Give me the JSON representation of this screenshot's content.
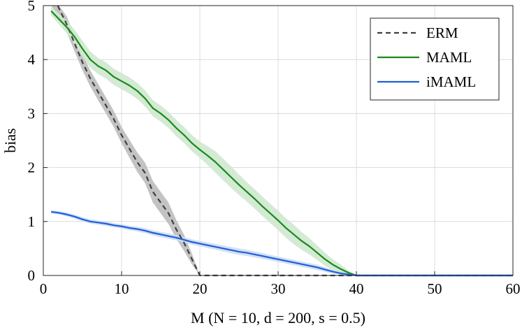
{
  "chart_data": {
    "type": "line",
    "xlabel": "M (N = 10, d = 200, s = 0.5)",
    "ylabel": "bias",
    "xlim": [
      0,
      60
    ],
    "ylim": [
      0,
      5
    ],
    "xticks": [
      "0",
      "10",
      "20",
      "30",
      "40",
      "50",
      "60"
    ],
    "yticks": [
      "0",
      "1",
      "2",
      "3",
      "4",
      "5"
    ],
    "grid": true,
    "legend_position": "top-right",
    "series": [
      {
        "name": "ERM",
        "color": "#404040",
        "band_color": "#bdbdbd",
        "dash": "dashed",
        "points": [
          [
            1,
            5.3
          ],
          [
            2,
            4.95
          ],
          [
            3,
            4.65
          ],
          [
            4,
            4.3
          ],
          [
            5,
            3.95
          ],
          [
            6,
            3.65
          ],
          [
            7,
            3.4
          ],
          [
            8,
            3.15
          ],
          [
            9,
            2.9
          ],
          [
            10,
            2.6
          ],
          [
            11,
            2.35
          ],
          [
            12,
            2.1
          ],
          [
            13,
            1.9
          ],
          [
            14,
            1.55
          ],
          [
            15,
            1.35
          ],
          [
            16,
            1.15
          ],
          [
            17,
            0.85
          ],
          [
            18,
            0.6
          ],
          [
            19,
            0.3
          ],
          [
            20,
            0
          ],
          [
            25,
            0
          ],
          [
            30,
            0
          ],
          [
            35,
            0
          ],
          [
            40,
            0
          ],
          [
            45,
            0
          ],
          [
            50,
            0
          ],
          [
            55,
            0
          ],
          [
            60,
            0
          ]
        ],
        "band": [
          [
            1,
            0.15
          ],
          [
            3,
            0.15
          ],
          [
            5,
            0.15
          ],
          [
            8,
            0.15
          ],
          [
            10,
            0.15
          ],
          [
            12,
            0.18
          ],
          [
            14,
            0.2
          ],
          [
            16,
            0.2
          ],
          [
            18,
            0.15
          ],
          [
            19,
            0.1
          ],
          [
            20,
            0
          ]
        ]
      },
      {
        "name": "MAML",
        "color": "#1a8a1a",
        "band_color": "#cfe8cf",
        "dash": "solid",
        "points": [
          [
            1,
            4.9
          ],
          [
            2,
            4.75
          ],
          [
            3,
            4.6
          ],
          [
            4,
            4.42
          ],
          [
            5,
            4.2
          ],
          [
            6,
            4.0
          ],
          [
            7,
            3.88
          ],
          [
            8,
            3.8
          ],
          [
            9,
            3.68
          ],
          [
            10,
            3.6
          ],
          [
            11,
            3.52
          ],
          [
            12,
            3.42
          ],
          [
            13,
            3.28
          ],
          [
            14,
            3.1
          ],
          [
            15,
            3.0
          ],
          [
            16,
            2.88
          ],
          [
            17,
            2.73
          ],
          [
            18,
            2.6
          ],
          [
            19,
            2.45
          ],
          [
            20,
            2.33
          ],
          [
            21,
            2.22
          ],
          [
            22,
            2.1
          ],
          [
            23,
            1.96
          ],
          [
            24,
            1.82
          ],
          [
            25,
            1.68
          ],
          [
            26,
            1.55
          ],
          [
            27,
            1.42
          ],
          [
            28,
            1.28
          ],
          [
            29,
            1.15
          ],
          [
            30,
            1.02
          ],
          [
            31,
            0.88
          ],
          [
            32,
            0.76
          ],
          [
            33,
            0.64
          ],
          [
            34,
            0.54
          ],
          [
            35,
            0.42
          ],
          [
            36,
            0.3
          ],
          [
            37,
            0.2
          ],
          [
            38,
            0.12
          ],
          [
            39,
            0.05
          ],
          [
            40,
            0
          ],
          [
            45,
            0
          ],
          [
            50,
            0
          ],
          [
            55,
            0
          ],
          [
            60,
            0
          ]
        ],
        "band": [
          [
            1,
            0.08
          ],
          [
            5,
            0.15
          ],
          [
            8,
            0.15
          ],
          [
            10,
            0.15
          ],
          [
            12,
            0.15
          ],
          [
            15,
            0.15
          ],
          [
            18,
            0.15
          ],
          [
            20,
            0.15
          ],
          [
            22,
            0.2
          ],
          [
            24,
            0.2
          ],
          [
            26,
            0.18
          ],
          [
            28,
            0.18
          ],
          [
            30,
            0.18
          ],
          [
            32,
            0.18
          ],
          [
            34,
            0.15
          ],
          [
            36,
            0.12
          ],
          [
            38,
            0.08
          ],
          [
            40,
            0
          ]
        ]
      },
      {
        "name": "iMAML",
        "color": "#1f5fd6",
        "band_color": "#cdddf5",
        "dash": "solid",
        "points": [
          [
            1,
            1.18
          ],
          [
            2,
            1.16
          ],
          [
            3,
            1.13
          ],
          [
            4,
            1.09
          ],
          [
            5,
            1.04
          ],
          [
            6,
            1.0
          ],
          [
            7,
            0.98
          ],
          [
            8,
            0.96
          ],
          [
            9,
            0.93
          ],
          [
            10,
            0.91
          ],
          [
            11,
            0.88
          ],
          [
            12,
            0.86
          ],
          [
            13,
            0.83
          ],
          [
            14,
            0.79
          ],
          [
            15,
            0.76
          ],
          [
            16,
            0.73
          ],
          [
            17,
            0.7
          ],
          [
            18,
            0.66
          ],
          [
            19,
            0.62
          ],
          [
            20,
            0.59
          ],
          [
            21,
            0.56
          ],
          [
            22,
            0.53
          ],
          [
            23,
            0.5
          ],
          [
            24,
            0.47
          ],
          [
            25,
            0.44
          ],
          [
            26,
            0.42
          ],
          [
            27,
            0.39
          ],
          [
            28,
            0.36
          ],
          [
            29,
            0.33
          ],
          [
            30,
            0.3
          ],
          [
            31,
            0.27
          ],
          [
            32,
            0.24
          ],
          [
            33,
            0.21
          ],
          [
            34,
            0.18
          ],
          [
            35,
            0.15
          ],
          [
            36,
            0.11
          ],
          [
            37,
            0.07
          ],
          [
            38,
            0.04
          ],
          [
            39,
            0.02
          ],
          [
            40,
            0
          ],
          [
            45,
            0
          ],
          [
            50,
            0
          ],
          [
            55,
            0
          ],
          [
            60,
            0
          ]
        ],
        "band": [
          [
            1,
            0.03
          ],
          [
            5,
            0.04
          ],
          [
            10,
            0.04
          ],
          [
            15,
            0.05
          ],
          [
            20,
            0.05
          ],
          [
            25,
            0.06
          ],
          [
            30,
            0.05
          ],
          [
            35,
            0.05
          ],
          [
            38,
            0.03
          ],
          [
            40,
            0
          ]
        ]
      }
    ]
  }
}
